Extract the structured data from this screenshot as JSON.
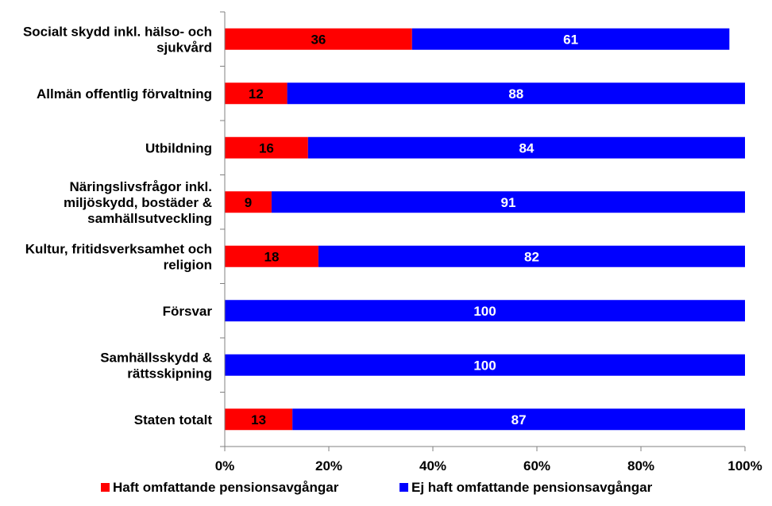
{
  "chart_data": {
    "type": "bar",
    "orientation": "horizontal",
    "stacked": true,
    "percent_stacked": true,
    "categories": [
      [
        "Socialt skydd inkl. hälso- och",
        "sjukvård"
      ],
      [
        "Allmän offentlig förvaltning"
      ],
      [
        "Utbildning"
      ],
      [
        "Näringslivsfrågor inkl.",
        "miljöskydd, bostäder &",
        "samhällsutveckling"
      ],
      [
        "Kultur, fritidsverksamhet och",
        "religion"
      ],
      [
        "Försvar"
      ],
      [
        "Samhällsskydd &",
        "rättsskipning"
      ],
      [
        "Staten totalt"
      ]
    ],
    "series": [
      {
        "name": "Haft omfattande pensionsavgångar",
        "color": "#ff0000",
        "values": [
          36,
          12,
          16,
          9,
          18,
          0,
          0,
          13
        ],
        "label_color": "#000000"
      },
      {
        "name": "Ej haft omfattande pensionsavgångar",
        "color": "#0000ff",
        "values": [
          61,
          88,
          84,
          91,
          82,
          100,
          100,
          87
        ],
        "label_color": "#ffffff"
      }
    ],
    "xlim": [
      0,
      100
    ],
    "x_ticks": [
      "0%",
      "20%",
      "40%",
      "60%",
      "80%",
      "100%"
    ],
    "grid": false,
    "legend_position": "bottom"
  }
}
